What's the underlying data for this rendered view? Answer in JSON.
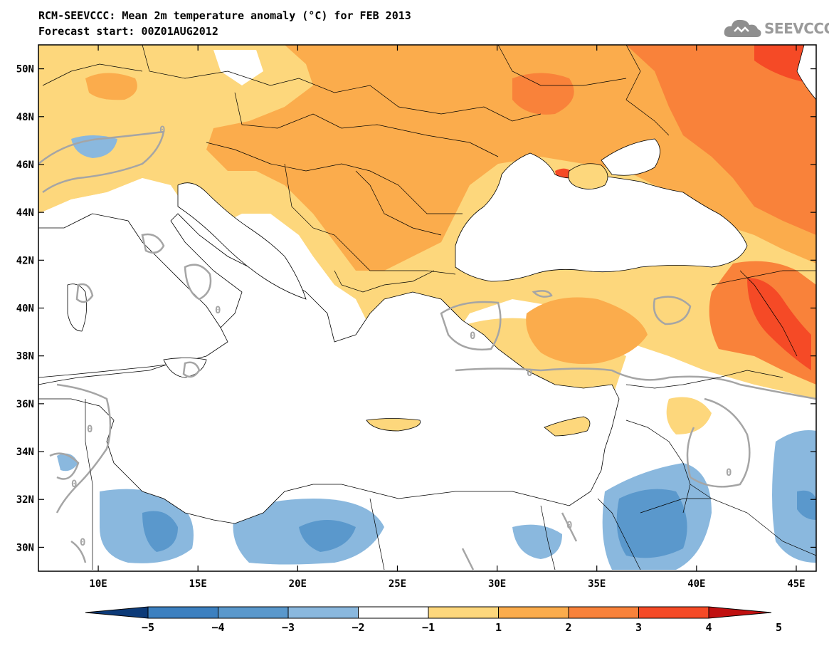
{
  "header": {
    "title": "RCM-SEEVCCC: Mean 2m temperature anomaly (°C) for FEB 2013",
    "subtitle": "Forecast start: 00Z01AUG2012",
    "logo_text": "SEEVCCC",
    "logo_icon": "cloud-icon"
  },
  "map": {
    "lat_labels": [
      "50N",
      "48N",
      "46N",
      "44N",
      "42N",
      "40N",
      "38N",
      "36N",
      "34N",
      "32N",
      "30N"
    ],
    "lon_labels": [
      "10E",
      "15E",
      "20E",
      "25E",
      "30E",
      "35E",
      "40E",
      "45E"
    ],
    "lat_values": [
      50,
      48,
      46,
      44,
      42,
      40,
      38,
      36,
      34,
      32,
      30
    ],
    "lon_values": [
      10,
      15,
      20,
      25,
      30,
      35,
      40,
      45
    ],
    "extent": {
      "lon_min": 7,
      "lon_max": 46,
      "lat_min": 29,
      "lat_max": 51
    },
    "contour_label": "0"
  },
  "legend": {
    "labels": [
      "−5",
      "−4",
      "−3",
      "−2",
      "−1",
      "1",
      "2",
      "3",
      "4",
      "5"
    ],
    "colors": [
      "#1c5a9a",
      "#3c80c0",
      "#5a98cc",
      "#8ab8de",
      "#ffffff",
      "#fdd77c",
      "#fbac4c",
      "#f9823a",
      "#f54a26",
      "#d01c1c"
    ],
    "extend_low_color": "#0c3a78",
    "extend_high_color": "#c01010"
  }
}
